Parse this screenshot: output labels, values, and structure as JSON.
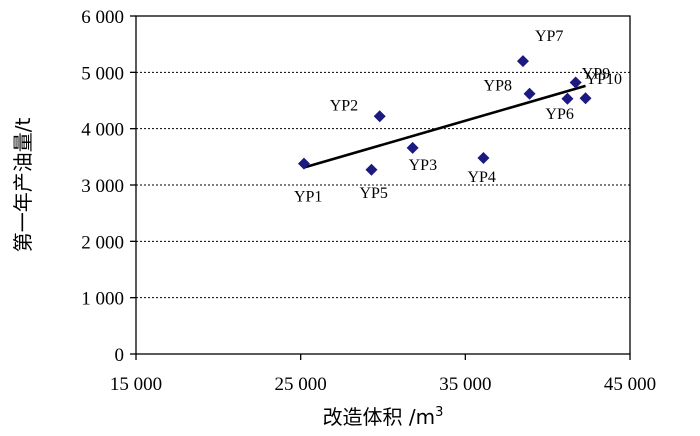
{
  "chart_data": {
    "type": "scatter",
    "title": "",
    "xlabel": "改造体积 /m",
    "xlabel_sup": "3",
    "ylabel": "第一年产油量/t",
    "xlim": [
      15000,
      45000
    ],
    "ylim": [
      0,
      6000
    ],
    "x_ticks": [
      15000,
      25000,
      35000,
      45000
    ],
    "x_tick_labels": [
      "15 000",
      "25 000",
      "35 000",
      "45 000"
    ],
    "y_ticks": [
      0,
      1000,
      2000,
      3000,
      4000,
      5000,
      6000
    ],
    "y_tick_labels": [
      "0",
      "1 000",
      "2 000",
      "3 000",
      "4 000",
      "5 000",
      "6 000"
    ],
    "grid": "horizontal dashed",
    "marker": "diamond",
    "marker_color": "#1a1a80",
    "series": [
      {
        "points": [
          {
            "label": "YP1",
            "x": 25200,
            "y": 3380
          },
          {
            "label": "YP2",
            "x": 29800,
            "y": 4220
          },
          {
            "label": "YP3",
            "x": 31800,
            "y": 3660
          },
          {
            "label": "YP4",
            "x": 36100,
            "y": 3480
          },
          {
            "label": "YP5",
            "x": 29300,
            "y": 3270
          },
          {
            "label": "YP6",
            "x": 41200,
            "y": 4530
          },
          {
            "label": "YP7",
            "x": 38500,
            "y": 5200
          },
          {
            "label": "YP8",
            "x": 38900,
            "y": 4620
          },
          {
            "label": "YP9",
            "x": 41700,
            "y": 4820
          },
          {
            "label": "YP10",
            "x": 42300,
            "y": 4540
          }
        ]
      }
    ],
    "trendline": {
      "x": [
        25200,
        42300
      ],
      "y": [
        3310,
        4760
      ],
      "color": "#000000"
    }
  }
}
